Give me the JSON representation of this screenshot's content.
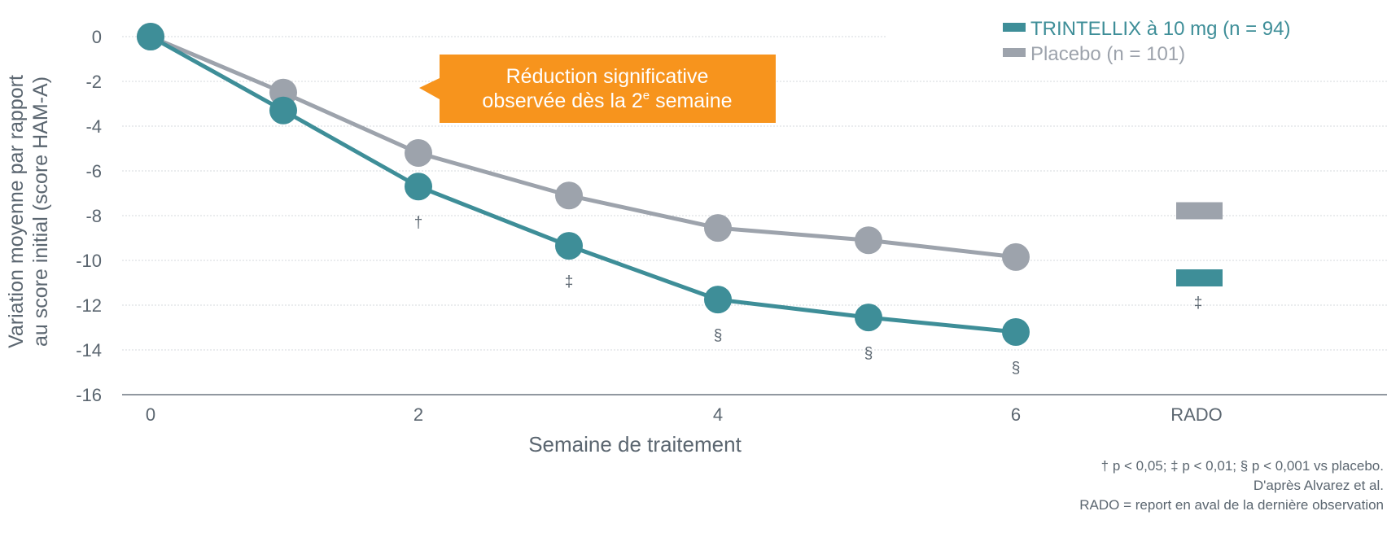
{
  "chart_data": {
    "type": "line",
    "title": "",
    "xlabel": "Semaine de traitement",
    "ylabel": [
      "Variation moyenne par rapport",
      "au score initial (score HAM-A)"
    ],
    "ylim": [
      -16,
      0
    ],
    "yticks": [
      0,
      -2,
      -4,
      -6,
      -8,
      -10,
      -12,
      -14,
      -16
    ],
    "xticks": [
      "0",
      "2",
      "4",
      "6",
      "RADO"
    ],
    "x": [
      0,
      1,
      2,
      3,
      4,
      5,
      6
    ],
    "grid": true,
    "legend_placement": "top-right",
    "series": [
      {
        "name": "TRINTELLIX à 10 mg (n = 94)",
        "color": "#3E8E98",
        "values": [
          0,
          -3.3,
          -6.7,
          -9.35,
          -11.75,
          -12.55,
          -13.2
        ],
        "rado": -10.8,
        "markers": [
          "",
          "",
          "†",
          "‡",
          "§",
          "§",
          "§"
        ],
        "rado_marker": "‡"
      },
      {
        "name": "Placebo (n = 101)",
        "color": "#9DA3AC",
        "values": [
          0,
          -2.5,
          -5.2,
          -7.1,
          -8.55,
          -9.1,
          -9.85
        ],
        "rado": -7.8
      }
    ],
    "annotation": {
      "lines": [
        "Réduction significative",
        "observée dès la 2",
        "e",
        " semaine"
      ],
      "color": "#F7941D"
    },
    "footnotes": [
      "† p < 0,05; ‡ p < 0,01; § p < 0,001 vs placebo.",
      "D'après Alvarez et al.",
      "RADO = report en aval de la dernière observation"
    ]
  }
}
